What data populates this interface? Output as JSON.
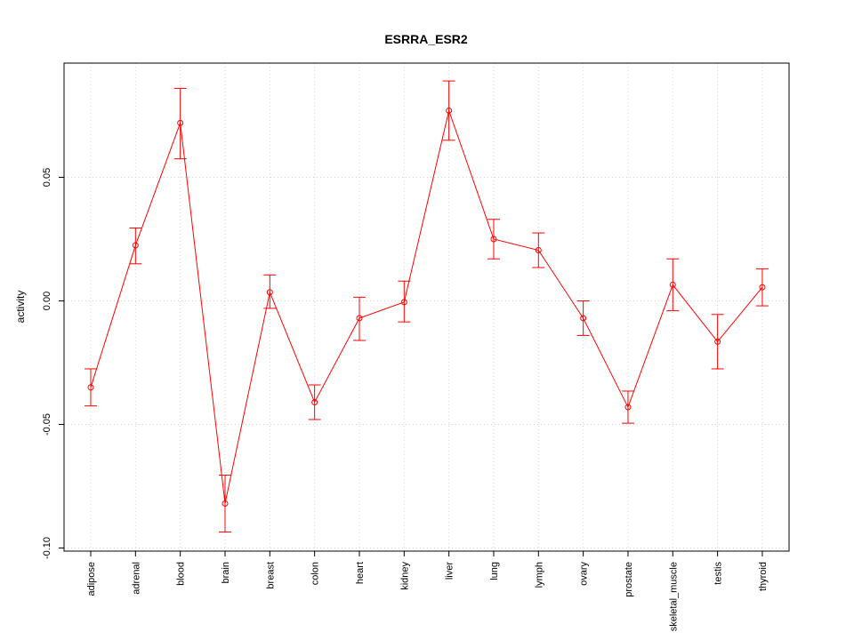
{
  "chart_data": {
    "type": "line",
    "title": "ESRRA_ESR2",
    "xlabel": "",
    "ylabel": "activity",
    "ylim": [
      -0.1,
      0.1
    ],
    "yticks": [
      -0.1,
      -0.05,
      0.0,
      0.05
    ],
    "ytick_labels": [
      "-0.10",
      "-0.05",
      "0.00",
      "0.05"
    ],
    "grid": true,
    "color": "#ff0000",
    "categories": [
      "adipose",
      "adrenal",
      "blood",
      "brain",
      "breast",
      "colon",
      "heart",
      "kidney",
      "liver",
      "lung",
      "lymph",
      "ovary",
      "prostate",
      "skeletal_muscle",
      "testis",
      "thyroid"
    ],
    "series": [
      {
        "values": [
          -0.035,
          0.0225,
          0.072,
          -0.082,
          0.0035,
          -0.041,
          -0.007,
          -0.0005,
          0.077,
          0.025,
          0.0205,
          -0.007,
          -0.043,
          0.0065,
          -0.0165,
          0.0055
        ],
        "lower": [
          -0.0425,
          0.015,
          0.0575,
          -0.0935,
          -0.003,
          -0.048,
          -0.016,
          -0.0085,
          0.065,
          0.017,
          0.0135,
          -0.014,
          -0.0495,
          -0.004,
          -0.0275,
          -0.002
        ],
        "upper": [
          -0.0275,
          0.0295,
          0.086,
          -0.0705,
          0.0105,
          -0.034,
          0.0015,
          0.008,
          0.089,
          0.033,
          0.0275,
          0.0,
          -0.0365,
          0.017,
          -0.0055,
          0.013
        ]
      }
    ]
  }
}
